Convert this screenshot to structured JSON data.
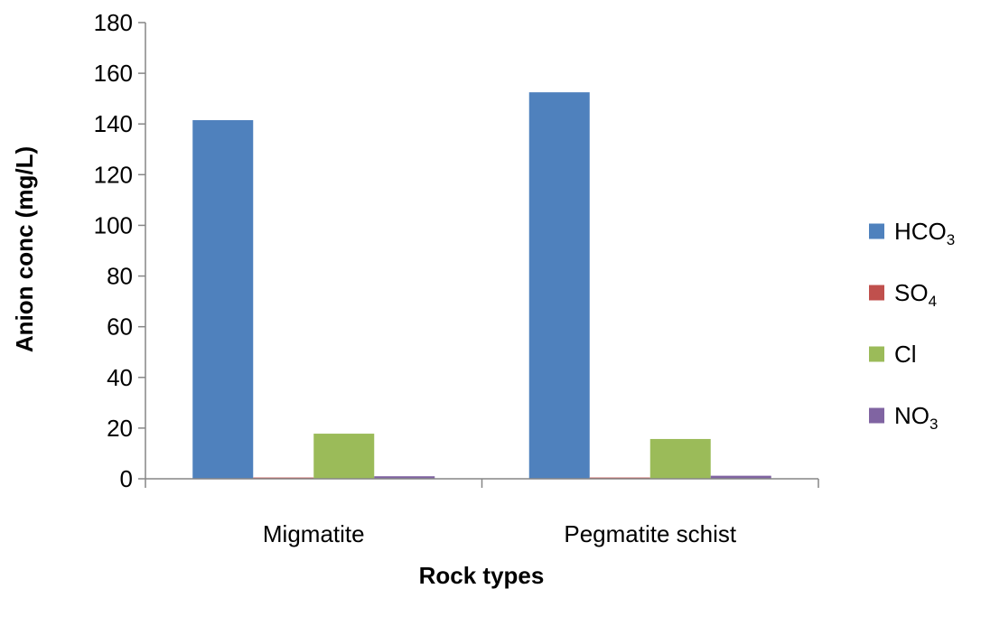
{
  "chart_data": {
    "type": "bar",
    "xlabel": "Rock types",
    "ylabel": "Anion conc (mg/L)",
    "ylim": [
      0,
      180
    ],
    "yticks": [
      0,
      20,
      40,
      60,
      80,
      100,
      120,
      140,
      160,
      180
    ],
    "categories": [
      "Migmatite",
      "Pegmatite schist"
    ],
    "series": [
      {
        "name": "HCO3",
        "label_main": "HCO",
        "label_sub": "3",
        "color": "#4F81BD",
        "values": [
          141.5,
          152.5
        ]
      },
      {
        "name": "SO4",
        "label_main": "SO",
        "label_sub": "4",
        "color": "#C0504D",
        "values": [
          0.5,
          0.5
        ]
      },
      {
        "name": "Cl",
        "label_main": "Cl",
        "label_sub": "",
        "color": "#9BBB59",
        "values": [
          17.8,
          15.7
        ]
      },
      {
        "name": "NO3",
        "label_main": "NO",
        "label_sub": "3",
        "color": "#8064A2",
        "values": [
          1.0,
          1.2
        ]
      }
    ],
    "legend_position": "right",
    "grid": false
  }
}
